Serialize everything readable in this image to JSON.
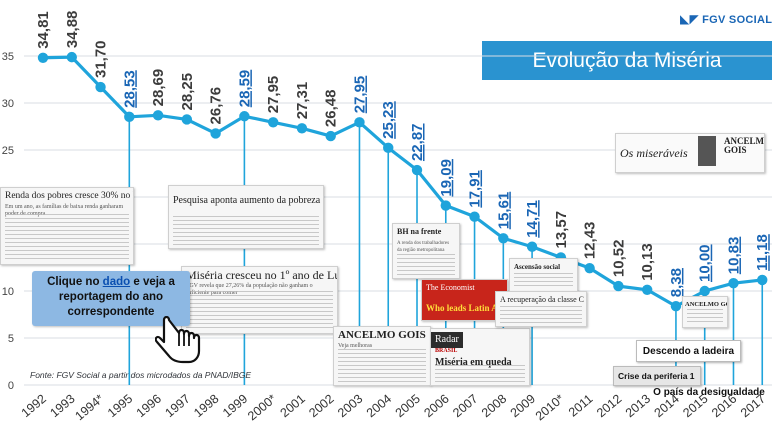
{
  "brand": {
    "name": "FGV SOCIAL",
    "icon": "fgv-logo-icon"
  },
  "title": "Evolução da Miséria",
  "source": "Fonte: FGV Social a partir dos microdados da PNAD/IBGE",
  "callout": {
    "before": "Clique no ",
    "highlight": "dado",
    "after": " e veja a reportagem do ano correspondente",
    "icon": "hand-pointer-icon"
  },
  "colors": {
    "line": "#1fa4db",
    "point": "#1fa4db",
    "link_label": "#1a66b5",
    "plain_label": "#3c3c3c",
    "grid": "#d8dde3",
    "title_bg": "#2a93d0"
  },
  "chart_data": {
    "type": "line",
    "title": "Evolução da Miséria",
    "xlabel": "",
    "ylabel": "",
    "ylim": [
      0,
      35
    ],
    "yticks": [
      0,
      5,
      10,
      15,
      20,
      25,
      30,
      35
    ],
    "grid": true,
    "categories": [
      "1992",
      "1993",
      "1994*",
      "1995",
      "1996",
      "1997",
      "1998",
      "1999",
      "2000*",
      "2001",
      "2002",
      "2003",
      "2004",
      "2005",
      "2006",
      "2007",
      "2008",
      "2009",
      "2010*",
      "2011",
      "2012",
      "2013",
      "2014",
      "2015",
      "2016",
      "2017"
    ],
    "series": [
      {
        "values": [
          34.81,
          34.88,
          31.7,
          28.53,
          28.69,
          28.25,
          26.76,
          28.59,
          27.95,
          27.31,
          26.48,
          27.95,
          25.23,
          22.87,
          19.09,
          17.91,
          15.61,
          14.71,
          13.57,
          12.43,
          10.52,
          10.13,
          8.38,
          10.0,
          10.83,
          11.18
        ]
      }
    ],
    "data_labels": [
      "34,81",
      "34,88",
      "31,70",
      "28,53",
      "28,69",
      "28,25",
      "26,76",
      "28,59",
      "27,95",
      "27,31",
      "26,48",
      "27,95",
      "25,23",
      "22,87",
      "19,09",
      "17,91",
      "15,61",
      "14,71",
      "13,57",
      "12,43",
      "10,52",
      "10,13",
      "8,38",
      "10,00",
      "10,83",
      "11,18"
    ],
    "linked": [
      false,
      false,
      false,
      true,
      false,
      false,
      false,
      true,
      false,
      false,
      false,
      true,
      true,
      true,
      true,
      true,
      true,
      true,
      false,
      false,
      false,
      false,
      true,
      true,
      true,
      true
    ]
  },
  "clippings": [
    {
      "id": "renda-pobres",
      "headline": "Renda dos pobres cresce 30% no Real",
      "sub": "Em um ano, as famílias de baixa renda ganharam poder de compra"
    },
    {
      "id": "pesquisa-pobreza",
      "headline": "Pesquisa aponta aumento da pobreza",
      "sub": "FGV mostra crescimento da miséria no país"
    },
    {
      "id": "miseria-lula",
      "headline": "Miséria cresceu no 1º ano de Lula",
      "sub": "FGV revela que 27,26% da população não ganham o suficiente para comer"
    },
    {
      "id": "ancelmo-2004",
      "headline": "ANCELMO GOIS",
      "sub": "Veja melhoras"
    },
    {
      "id": "radar",
      "headline": "Radar",
      "sub": "BRASIL",
      "extra": "Miséria em queda"
    },
    {
      "id": "bh-frente",
      "headline": "BH na frente",
      "sub": "A renda dos trabalhadores da região metropolitana"
    },
    {
      "id": "economist",
      "headline": "The Economist",
      "sub": "Who leads Latin America?"
    },
    {
      "id": "ascensao",
      "headline": "Ascensão social",
      "sub": ""
    },
    {
      "id": "classe-c",
      "headline": "A recuperação da classe C",
      "sub": ""
    },
    {
      "id": "miseraveis",
      "headline": "Os miseráveis",
      "sub": "ANCELMO GOIS"
    },
    {
      "id": "ancelmo-2015",
      "headline": "ANCELMO GOIS",
      "sub": ""
    }
  ],
  "labels": {
    "descendo": "Descendo a ladeira",
    "crise": "Crise da periferia 1",
    "pais": "O país da desigualdade"
  }
}
